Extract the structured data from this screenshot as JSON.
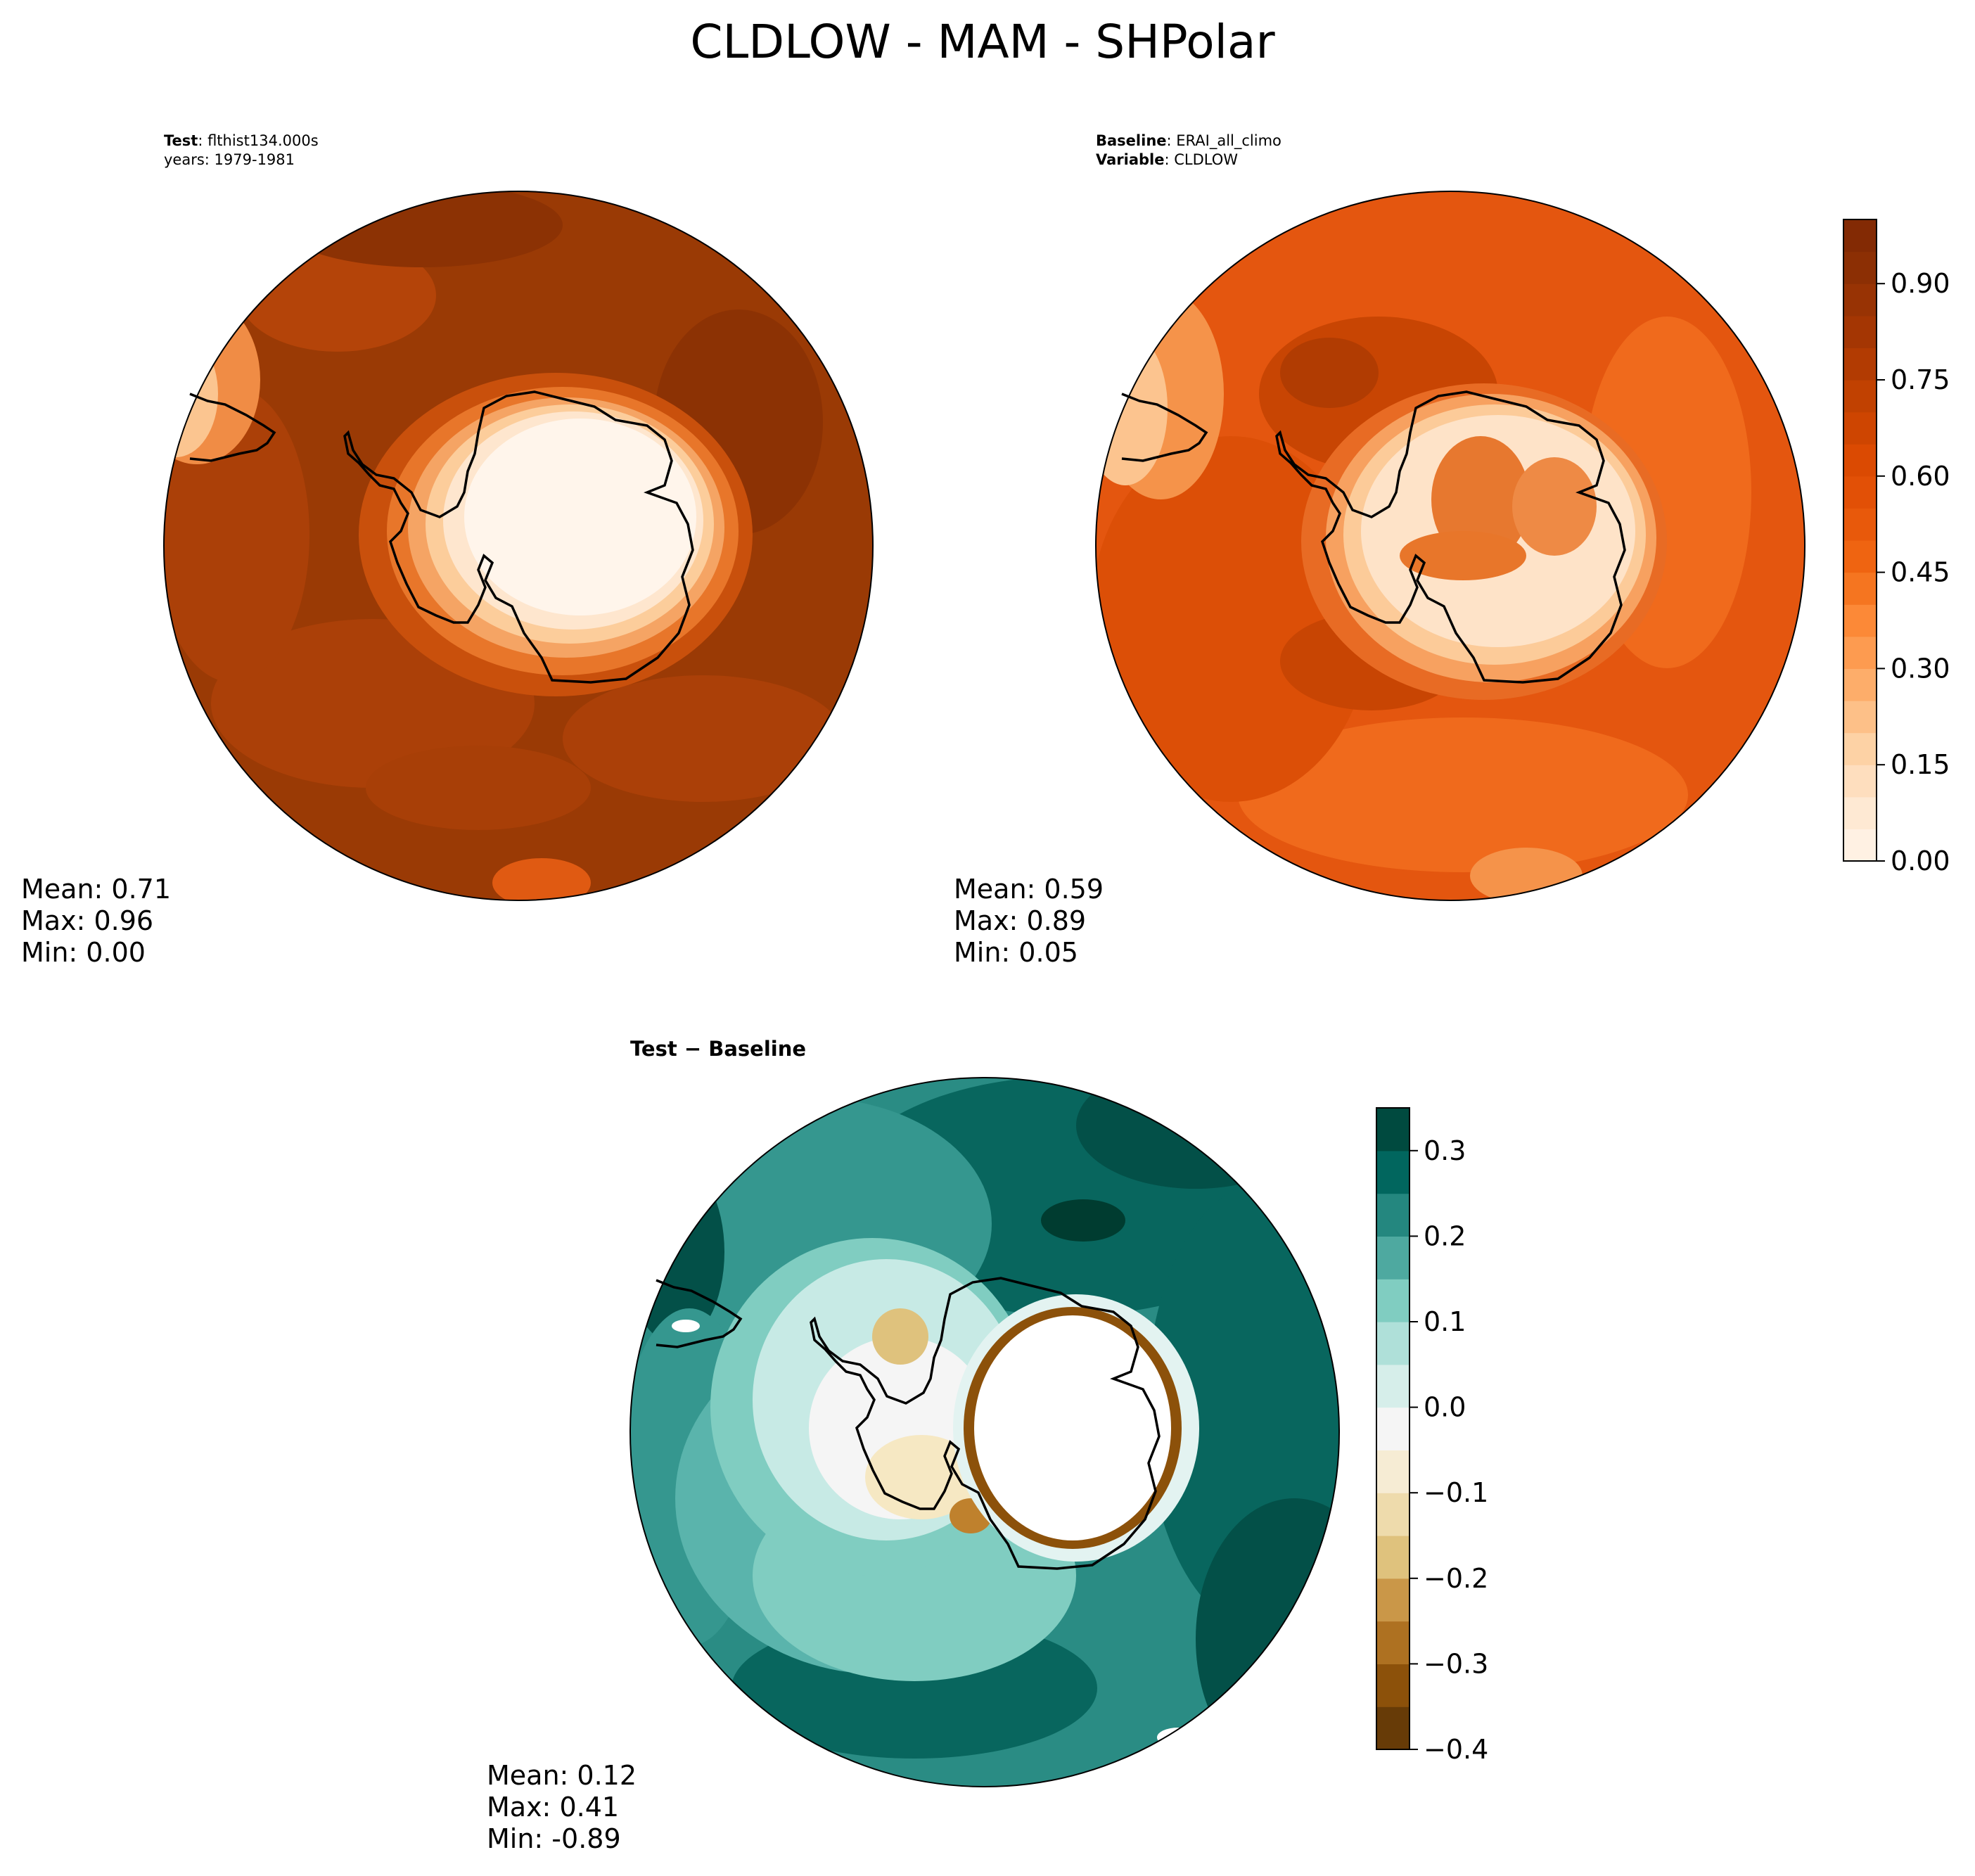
{
  "title": "CLDLOW - MAM - SHPolar",
  "panels": {
    "test": {
      "label_key": "Test",
      "label_value": ": flthist134.000s",
      "years_line": "years: 1979-1981",
      "stats": {
        "mean": "Mean:  0.71",
        "max": "Max:  0.96",
        "min": "Min:  0.00"
      }
    },
    "baseline": {
      "label_key": "Baseline",
      "label_value": ": ERAI_all_climo",
      "variable_key": "Variable",
      "variable_value": ": CLDLOW",
      "stats": {
        "mean": "Mean:  0.59",
        "max": "Max:  0.89",
        "min": "Min:  0.05"
      }
    },
    "diff": {
      "label": "Test − Baseline",
      "stats": {
        "mean": "Mean:  0.12",
        "max": "Max:  0.41",
        "min": "Min: -0.89"
      }
    }
  },
  "colors": {
    "oranges": [
      "#fff5eb",
      "#fee6ce",
      "#fdd0a2",
      "#fdae6b",
      "#fd8d3c",
      "#f16913",
      "#e65409",
      "#d94801",
      "#c04101",
      "#a63603",
      "#8f3104",
      "#7f2704"
    ],
    "brbg": [
      "#543005",
      "#8c510a",
      "#bf812d",
      "#dfc27d",
      "#f6e8c3",
      "#f5f5f5",
      "#c7eae5",
      "#80cdc1",
      "#35978f",
      "#01665e",
      "#003c30"
    ],
    "coastline": "#000000",
    "map_fill_test": "#9a3a05",
    "map_fill_base": "#e4560f",
    "map_fill_diff": "#2a8c84"
  },
  "chart_data": [
    {
      "type": "heatmap",
      "name": "Test",
      "projection": "south polar stereographic",
      "stats": {
        "mean": 0.71,
        "max": 0.96,
        "min": 0.0
      }
    },
    {
      "type": "heatmap",
      "name": "Baseline",
      "projection": "south polar stereographic",
      "stats": {
        "mean": 0.59,
        "max": 0.89,
        "min": 0.05
      },
      "colorbar": {
        "cmap": "Oranges",
        "range": [
          0.0,
          1.0
        ],
        "ticks": [
          0.0,
          0.15,
          0.3,
          0.45,
          0.6,
          0.75,
          0.9
        ],
        "tick_labels": [
          "0.00",
          "0.15",
          "0.30",
          "0.45",
          "0.60",
          "0.75",
          "0.90"
        ],
        "levels": 20
      }
    },
    {
      "type": "heatmap",
      "name": "Test - Baseline",
      "projection": "south polar stereographic",
      "stats": {
        "mean": 0.12,
        "max": 0.41,
        "min": -0.89
      },
      "colorbar": {
        "cmap": "BrBG",
        "range": [
          -0.4,
          0.35
        ],
        "ticks": [
          -0.4,
          -0.3,
          -0.2,
          -0.1,
          0.0,
          0.1,
          0.2,
          0.3
        ],
        "tick_labels": [
          "−0.4",
          "−0.3",
          "−0.2",
          "−0.1",
          "0.0",
          "0.1",
          "0.2",
          "0.3"
        ],
        "levels": 15
      }
    }
  ]
}
